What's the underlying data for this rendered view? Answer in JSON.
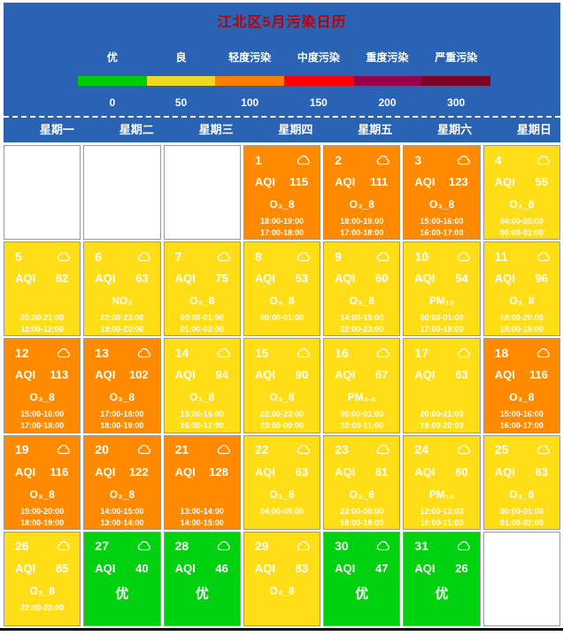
{
  "chart_data": {
    "type": "heatmap",
    "title": "江北区5月污染日历",
    "aqi_label": "AQI",
    "weather_icon": "cloud",
    "legend": {
      "levels": [
        {
          "label": "优",
          "color": "#00CC00",
          "tick": "0"
        },
        {
          "label": "良",
          "color": "#F0D722",
          "tick": "50"
        },
        {
          "label": "轻度污染",
          "color": "#FF7E00",
          "tick": "100"
        },
        {
          "label": "中度污染",
          "color": "#FF0000",
          "tick": "150"
        },
        {
          "label": "重度污染",
          "color": "#99004C",
          "tick": "200"
        },
        {
          "label": "严重污染",
          "color": "#7E0023",
          "tick": "300"
        }
      ]
    },
    "weekdays": [
      "星期一",
      "星期二",
      "星期三",
      "星期四",
      "星期五",
      "星期六",
      "星期日"
    ],
    "cells": [
      {
        "empty": true
      },
      {
        "empty": true
      },
      {
        "empty": true
      },
      {
        "day": "1",
        "aqi": "115",
        "level": "light",
        "pollutant": "O₃_8",
        "times": [
          "18:00-19:00",
          "17:00-18:00"
        ]
      },
      {
        "day": "2",
        "aqi": "111",
        "level": "light",
        "pollutant": "O₃_8",
        "times": [
          "18:00-19:00",
          "17:00-18:00"
        ]
      },
      {
        "day": "3",
        "aqi": "123",
        "level": "light",
        "pollutant": "O₃_8",
        "times": [
          "15:00-16:00",
          "16:00-17:00"
        ]
      },
      {
        "day": "4",
        "aqi": "55",
        "level": "good",
        "pollutant": "O₃_8",
        "times": [
          "04:00-05:00",
          "00:00-01:00"
        ]
      },
      {
        "day": "5",
        "aqi": "82",
        "level": "good",
        "times": [
          "20:00-21:00",
          "11:00-12:00"
        ]
      },
      {
        "day": "6",
        "aqi": "63",
        "level": "good",
        "pollutant": "NO₂",
        "times": [
          "22:00-23:00",
          "19:00-20:00"
        ]
      },
      {
        "day": "7",
        "aqi": "75",
        "level": "good",
        "pollutant": "O₃_8",
        "times": [
          "00:00-01:00",
          "01:00-02:00"
        ]
      },
      {
        "day": "8",
        "aqi": "53",
        "level": "good",
        "pollutant": "O₃_8",
        "times": [
          "00:00-01:00"
        ]
      },
      {
        "day": "9",
        "aqi": "60",
        "level": "good",
        "pollutant": "O₃_8",
        "times": [
          "14:00-15:00",
          "22:00-23:00"
        ]
      },
      {
        "day": "10",
        "aqi": "54",
        "level": "good",
        "pollutant": "PM₁₀",
        "times": [
          "00:00-01:00",
          "17:00-18:00"
        ]
      },
      {
        "day": "11",
        "aqi": "96",
        "level": "good",
        "pollutant": "O₃_8",
        "times": [
          "19:00-20:00",
          "18:00-19:00"
        ]
      },
      {
        "day": "12",
        "aqi": "113",
        "level": "light",
        "pollutant": "O₃_8",
        "times": [
          "15:00-16:00",
          "17:00-18:00"
        ]
      },
      {
        "day": "13",
        "aqi": "102",
        "level": "light",
        "pollutant": "O₃_8",
        "times": [
          "17:00-18:00",
          "18:00-19:00"
        ]
      },
      {
        "day": "14",
        "aqi": "94",
        "level": "good",
        "pollutant": "O₃_8",
        "times": [
          "15:00-16:00",
          "16:00-17:00"
        ]
      },
      {
        "day": "15",
        "aqi": "90",
        "level": "good",
        "pollutant": "O₃_8",
        "times": [
          "22:00-23:00",
          "23:00-00:00"
        ]
      },
      {
        "day": "16",
        "aqi": "67",
        "level": "good",
        "pollutant": "PM₂.₅",
        "times": [
          "00:00-01:00",
          "10:00-11:00"
        ]
      },
      {
        "day": "17",
        "aqi": "63",
        "level": "good",
        "times": [
          "20:00-21:00",
          "19:00-20:00"
        ]
      },
      {
        "day": "18",
        "aqi": "116",
        "level": "light",
        "pollutant": "O₃_8",
        "times": [
          "15:00-16:00",
          "16:00-17:00"
        ]
      },
      {
        "day": "19",
        "aqi": "116",
        "level": "light",
        "pollutant": "O₃_8",
        "times": [
          "19:00-20:00",
          "18:00-19:00"
        ]
      },
      {
        "day": "20",
        "aqi": "122",
        "level": "light",
        "pollutant": "O₃_8",
        "times": [
          "14:00-15:00",
          "13:00-14:00"
        ]
      },
      {
        "day": "21",
        "aqi": "128",
        "level": "light",
        "times": [
          "13:00-14:00",
          "14:00-15:00"
        ]
      },
      {
        "day": "22",
        "aqi": "63",
        "level": "good",
        "pollutant": "O₃_8",
        "times": [
          "04:00-05:00"
        ]
      },
      {
        "day": "23",
        "aqi": "61",
        "level": "good",
        "pollutant": "O₃_8",
        "times": [
          "23:00-00:00",
          "18:00-19:00"
        ]
      },
      {
        "day": "24",
        "aqi": "60",
        "level": "good",
        "pollutant": "PM₁₀",
        "times": [
          "12:00-13:00",
          "10:00-11:00"
        ]
      },
      {
        "day": "25",
        "aqi": "63",
        "level": "good",
        "pollutant": "O₃_8",
        "times": [
          "00:00-01:00",
          "01:00-02:00"
        ]
      },
      {
        "day": "26",
        "aqi": "85",
        "level": "good",
        "pollutant": "O₃_8",
        "times": [
          "22:00-23:00"
        ]
      },
      {
        "day": "27",
        "aqi": "40",
        "level": "excellent",
        "grade": "优"
      },
      {
        "day": "28",
        "aqi": "46",
        "level": "excellent",
        "grade": "优"
      },
      {
        "day": "29",
        "aqi": "83",
        "level": "good",
        "pollutant": "O₃_8"
      },
      {
        "day": "30",
        "aqi": "47",
        "level": "excellent",
        "grade": "优"
      },
      {
        "day": "31",
        "aqi": "26",
        "level": "excellent",
        "grade": "优"
      },
      {
        "empty": true
      }
    ]
  },
  "colors": {
    "header_blue": "#2A62B4",
    "title_red": "#C00000",
    "excellent": "#00D20F",
    "good": "#FFDE17",
    "light": "#FF8A00",
    "cell_border": "#9A9A9A"
  }
}
